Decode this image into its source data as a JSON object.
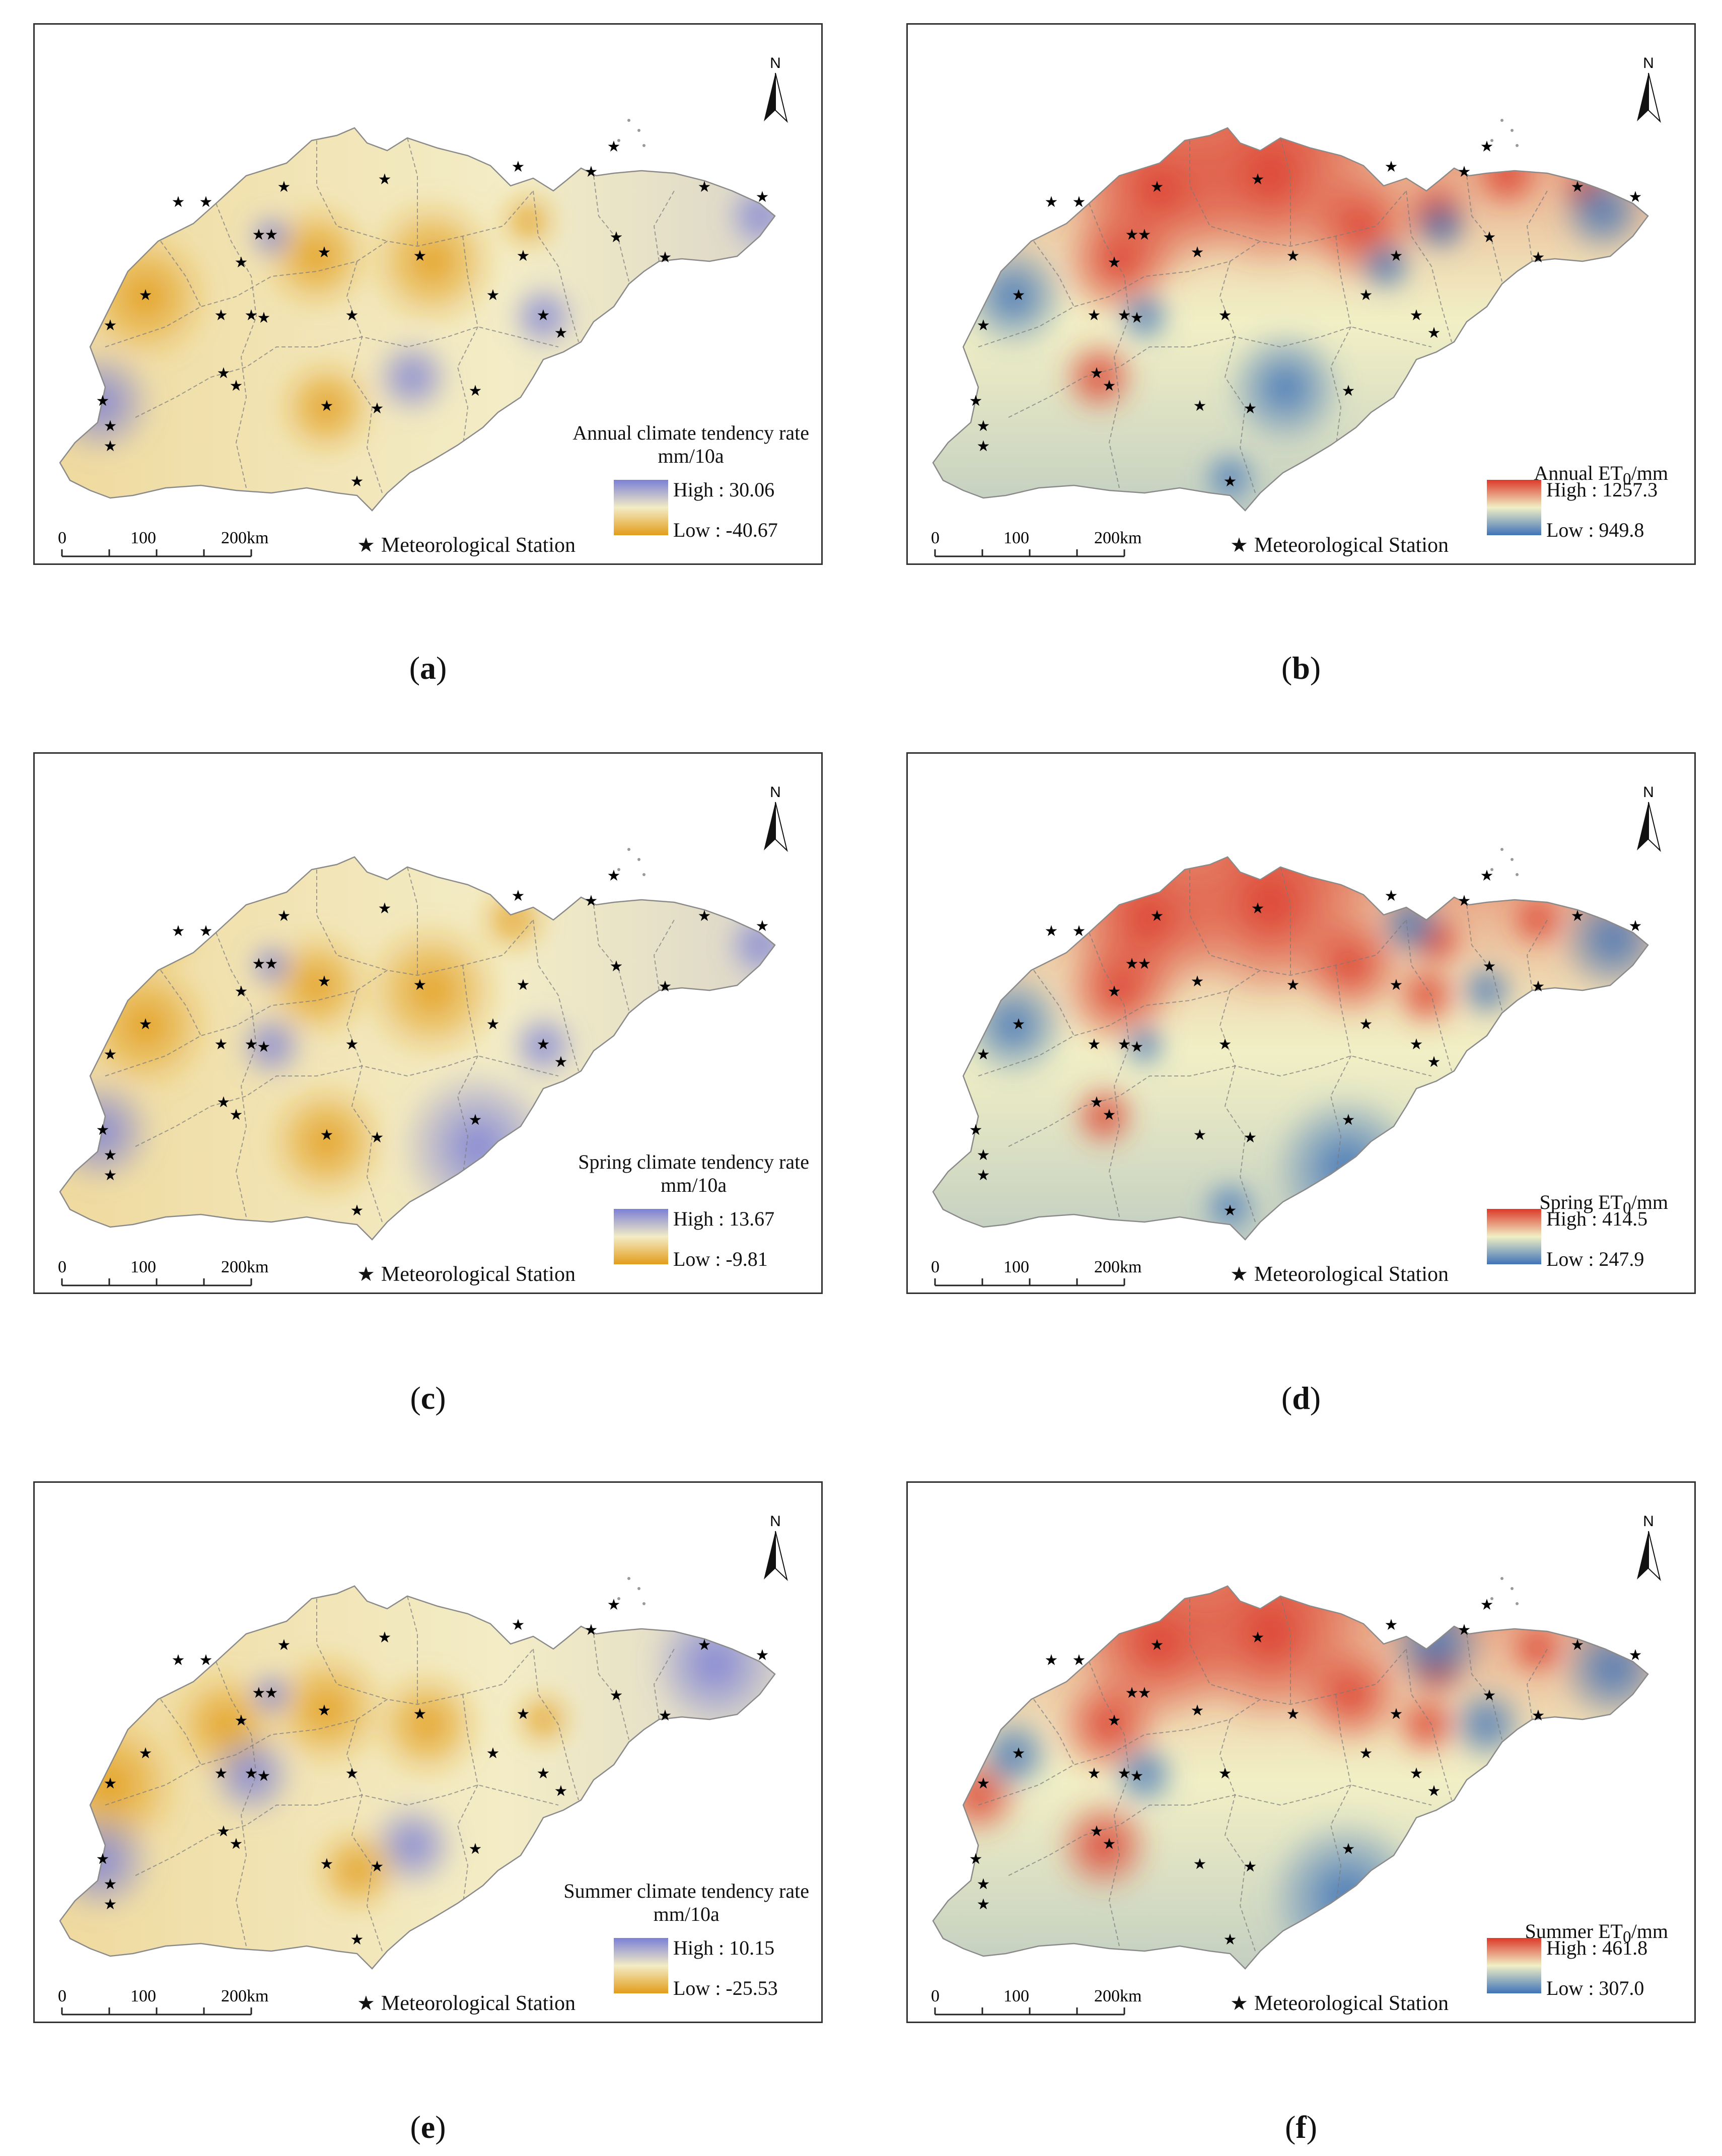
{
  "panels": [
    {
      "id": "a",
      "caption": "a",
      "legend_title": "Annual climate tendency rate\nmm/10a",
      "high_label": "High : 30.06",
      "low_label": "Low : -40.67",
      "scheme": "tendency"
    },
    {
      "id": "b",
      "caption": "b",
      "legend_title": "Annual ET₀/mm",
      "high_label": "High : 1257.3",
      "low_label": "Low : 949.8",
      "scheme": "et0"
    },
    {
      "id": "c",
      "caption": "c",
      "legend_title": "Spring climate tendency rate\nmm/10a",
      "high_label": "High : 13.67",
      "low_label": "Low : -9.81",
      "scheme": "tendency"
    },
    {
      "id": "d",
      "caption": "d",
      "legend_title": "Spring ET₀/mm",
      "high_label": "High : 414.5",
      "low_label": "Low : 247.9",
      "scheme": "et0"
    },
    {
      "id": "e",
      "caption": "e",
      "legend_title": "Summer climate tendency rate\nmm/10a",
      "high_label": "High : 10.15",
      "low_label": "Low : -25.53",
      "scheme": "tendency"
    },
    {
      "id": "f",
      "caption": "f",
      "legend_title": "Summer ET₀/mm",
      "high_label": "High : 461.8",
      "low_label": "Low : 307.0",
      "scheme": "et0"
    }
  ],
  "common": {
    "north_label": "N",
    "station_legend": "Meteorological Station",
    "station_symbol": "★",
    "scale_labels": [
      "0",
      "100",
      "200km"
    ]
  },
  "colors": {
    "tendency_high": "#7b7fd6",
    "tendency_mid": "#f3ecc6",
    "tendency_low": "#e39d1a",
    "et0_high": "#dc3a2a",
    "et0_mid": "#f1efc5",
    "et0_low": "#3f73b8"
  }
}
